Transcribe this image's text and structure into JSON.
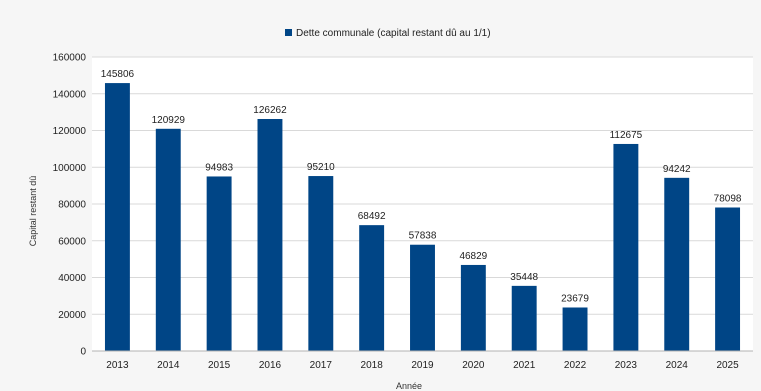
{
  "chart_data": {
    "type": "bar",
    "categories": [
      "2013",
      "2014",
      "2015",
      "2016",
      "2017",
      "2018",
      "2019",
      "2020",
      "2021",
      "2022",
      "2023",
      "2024",
      "2025"
    ],
    "series": [
      {
        "name": "Dette communale (capital restant dû au 1/1)",
        "values": [
          145806,
          120929,
          94983,
          126262,
          95210,
          68492,
          57838,
          46829,
          35448,
          23679,
          112675,
          94242,
          78098
        ],
        "color": "#004586"
      }
    ],
    "title": "",
    "xlabel": "Année",
    "ylabel": "Capital restant dû",
    "ylim": [
      0,
      160000
    ],
    "yticks": [
      0,
      20000,
      40000,
      60000,
      80000,
      100000,
      120000,
      140000,
      160000
    ],
    "grid": true,
    "legend_position": "top",
    "data_labels": true
  }
}
